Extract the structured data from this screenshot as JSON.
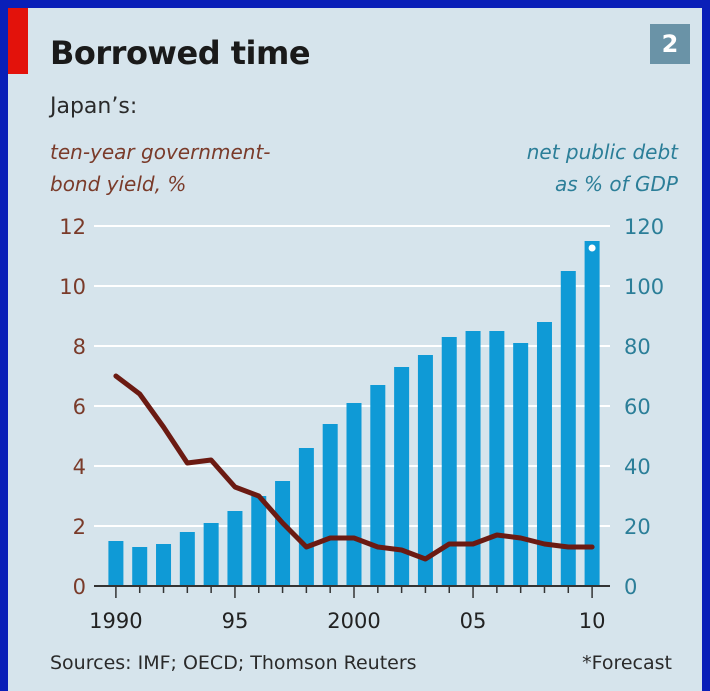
{
  "header": {
    "title": "Borrowed time",
    "badge": "2",
    "subtitle": "Japan’s:"
  },
  "axes": {
    "left_label_line1": "ten-year government-",
    "left_label_line2": "bond yield, %",
    "right_label_line1": "net public debt",
    "right_label_line2": "as % of GDP"
  },
  "footer": {
    "sources": "Sources: IMF; OECD; Thomson Reuters",
    "note": "*Forecast"
  },
  "colors": {
    "bar": "#0f9ad6",
    "line": "#6b1a12",
    "left_axis": "#7a3b2a",
    "right_axis": "#2b7e98",
    "grid": "#ffffff"
  },
  "chart_data": {
    "type": "bar",
    "x": [
      1990,
      1991,
      1992,
      1993,
      1994,
      1995,
      1996,
      1997,
      1998,
      1999,
      2000,
      2001,
      2002,
      2003,
      2004,
      2005,
      2006,
      2007,
      2008,
      2009,
      2010
    ],
    "x_tick_labels": [
      "1990",
      "95",
      "2000",
      "05",
      "10"
    ],
    "x_tick_values": [
      1990,
      1995,
      2000,
      2005,
      2010
    ],
    "forecast_marker_year": 2010,
    "series": [
      {
        "name": "net public debt as % of GDP",
        "type": "bar",
        "axis": "right",
        "values": [
          15,
          13,
          14,
          18,
          21,
          25,
          30,
          35,
          46,
          54,
          61,
          67,
          73,
          77,
          83,
          85,
          85,
          81,
          88,
          105,
          115
        ]
      },
      {
        "name": "ten-year government-bond yield, %",
        "type": "line",
        "axis": "left",
        "values": [
          7.0,
          6.4,
          5.3,
          4.1,
          4.2,
          3.3,
          3.0,
          2.1,
          1.3,
          1.6,
          1.6,
          1.3,
          1.2,
          0.9,
          1.4,
          1.4,
          1.7,
          1.6,
          1.4,
          1.3,
          1.3
        ]
      }
    ],
    "left_axis": {
      "ylim": [
        0,
        12
      ],
      "ticks": [
        0,
        2,
        4,
        6,
        8,
        10,
        12
      ]
    },
    "right_axis": {
      "ylim": [
        0,
        120
      ],
      "ticks": [
        0,
        20,
        40,
        60,
        80,
        100,
        120
      ]
    },
    "grid": true
  }
}
